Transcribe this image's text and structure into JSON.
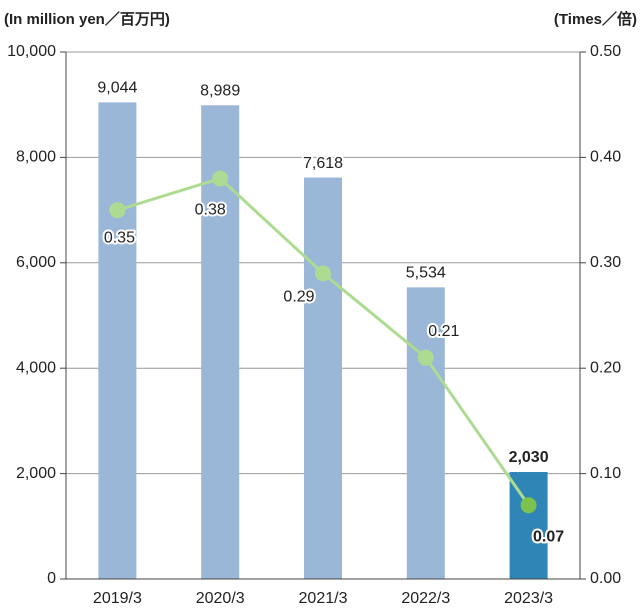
{
  "chart_data": {
    "type": "bar",
    "y_label": "(In million yen／百万円)",
    "y2_label": "(Times／倍)",
    "categories": [
      "2019/3",
      "2020/3",
      "2021/3",
      "2022/3",
      "2023/3"
    ],
    "series": [
      {
        "type": "bar",
        "colors": [
          "#9ab7d8",
          "#9ab7d8",
          "#9ab7d8",
          "#9ab7d8",
          "#2f86b6"
        ],
        "values": [
          9044,
          8989,
          7618,
          5534,
          2030
        ],
        "value_labels": [
          "9,044",
          "8,989",
          "7,618",
          "5,534",
          "2,030"
        ]
      },
      {
        "type": "line",
        "axis": "y2",
        "color": "#addb92",
        "point_colors": [
          "#addb92",
          "#addb92",
          "#addb92",
          "#addb92",
          "#7cc24e"
        ],
        "values": [
          0.35,
          0.38,
          0.29,
          0.21,
          0.07
        ]
      }
    ],
    "ylim": [
      0,
      10000
    ],
    "yticks": [
      0,
      {
        "value": 2000,
        "label": "2,000"
      },
      {
        "value": 4000,
        "label": "4,000"
      },
      {
        "value": 6000,
        "label": "6,000"
      },
      {
        "value": 8000,
        "label": "8,000"
      },
      {
        "value": 10000,
        "label": "10,000"
      }
    ],
    "y2lim": [
      0,
      0.5
    ],
    "y2ticks": [
      {
        "value": 0,
        "label": "0.00"
      },
      {
        "value": 0.1,
        "label": "0.10"
      },
      {
        "value": 0.2,
        "label": "0.20"
      },
      {
        "value": 0.3,
        "label": "0.30"
      },
      {
        "value": 0.4,
        "label": "0.40"
      },
      {
        "value": 0.5,
        "label": "0.50"
      }
    ],
    "grid": true
  }
}
